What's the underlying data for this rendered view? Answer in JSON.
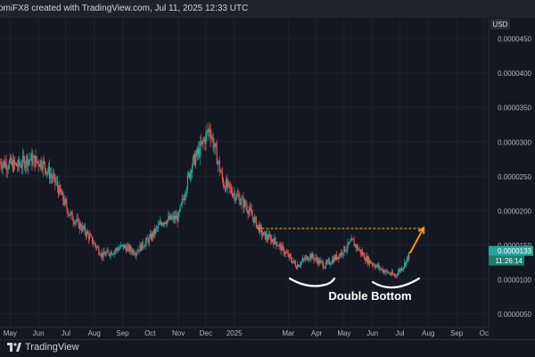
{
  "header": {
    "text": "omiFX8 created with TradingView.com, Jul 11, 2025 12:33 UTC"
  },
  "footer": {
    "brand": "TradingView"
  },
  "chart_data": {
    "type": "candlestick",
    "currency": "USD",
    "y_axis_labels": [
      "0.0000450",
      "0.0000400",
      "0.0000350",
      "0.0000300",
      "0.0000250",
      "0.0000200",
      "0.0000150",
      "0.0000100",
      "0.0000050"
    ],
    "y_ticks": [
      4.5e-05,
      4e-05,
      3.5e-05,
      3e-05,
      2.5e-05,
      2e-05,
      1.5e-05,
      1e-05,
      5e-06
    ],
    "ylim": [
      3e-06,
      4.8e-05
    ],
    "x_labels": [
      "May",
      "Jun",
      "Jul",
      "Aug",
      "Sep",
      "Oct",
      "Nov",
      "Dec",
      "2025",
      "Mar",
      "Apr",
      "May",
      "Jun",
      "Jul",
      "Aug",
      "Sep",
      "Oc"
    ],
    "time_axis": {
      "start": "2024-04-20",
      "end": "2025-10-05"
    },
    "x_label_dates": [
      "2024-05-01",
      "2024-06-01",
      "2024-07-01",
      "2024-08-01",
      "2024-09-01",
      "2024-10-01",
      "2024-11-01",
      "2024-12-01",
      "2025-01-01",
      "2025-03-01",
      "2025-04-01",
      "2025-05-01",
      "2025-06-01",
      "2025-07-01",
      "2025-08-01",
      "2025-09-01",
      "2025-10-01"
    ],
    "last_price": "0.0000133",
    "price_tag_label": "0.0000133",
    "countdown_label": "11:26:14",
    "resistance_level": 1.74e-05,
    "resistance_span": [
      "2025-01-26",
      "2025-07-26"
    ],
    "projection": {
      "from": [
        "2025-07-12",
        1.38e-05
      ],
      "to": [
        "2025-07-27",
        1.75e-05
      ]
    },
    "annotation": "Double Bottom",
    "price_path": [
      [
        "2024-04-20",
        2.7e-05
      ],
      [
        "2024-05-10",
        2.65e-05
      ],
      [
        "2024-05-20",
        2.75e-05
      ],
      [
        "2024-06-05",
        2.7e-05
      ],
      [
        "2024-06-20",
        2.4e-05
      ],
      [
        "2024-07-05",
        1.95e-05
      ],
      [
        "2024-07-25",
        1.65e-05
      ],
      [
        "2024-08-10",
        1.35e-05
      ],
      [
        "2024-08-20",
        1.4e-05
      ],
      [
        "2024-09-01",
        1.48e-05
      ],
      [
        "2024-09-15",
        1.4e-05
      ],
      [
        "2024-10-01",
        1.6e-05
      ],
      [
        "2024-10-15",
        1.85e-05
      ],
      [
        "2024-11-01",
        1.9e-05
      ],
      [
        "2024-11-15",
        2.65e-05
      ],
      [
        "2024-11-25",
        2.9e-05
      ],
      [
        "2024-12-05",
        3.2e-05
      ],
      [
        "2024-12-20",
        2.4e-05
      ],
      [
        "2025-01-01",
        2.25e-05
      ],
      [
        "2025-01-15",
        2.05e-05
      ],
      [
        "2025-02-01",
        1.65e-05
      ],
      [
        "2025-02-15",
        1.55e-05
      ],
      [
        "2025-03-10",
        1.2e-05
      ],
      [
        "2025-03-25",
        1.35e-05
      ],
      [
        "2025-04-10",
        1.2e-05
      ],
      [
        "2025-04-25",
        1.35e-05
      ],
      [
        "2025-05-10",
        1.55e-05
      ],
      [
        "2025-05-25",
        1.3e-05
      ],
      [
        "2025-06-10",
        1.15e-05
      ],
      [
        "2025-06-25",
        1.05e-05
      ],
      [
        "2025-07-05",
        1.2e-05
      ],
      [
        "2025-07-11",
        1.35e-05
      ]
    ],
    "colors": {
      "background": "#131722",
      "up": "#26a69a",
      "down": "#ef5350",
      "grid": "#1e222d",
      "text": "#b2b5be",
      "resistance": "#f5c518",
      "projection": "#f7931a",
      "annotation": "#ffffff",
      "price_tag": "#26a69a",
      "countdown_tag": "#1b7c6f"
    }
  }
}
